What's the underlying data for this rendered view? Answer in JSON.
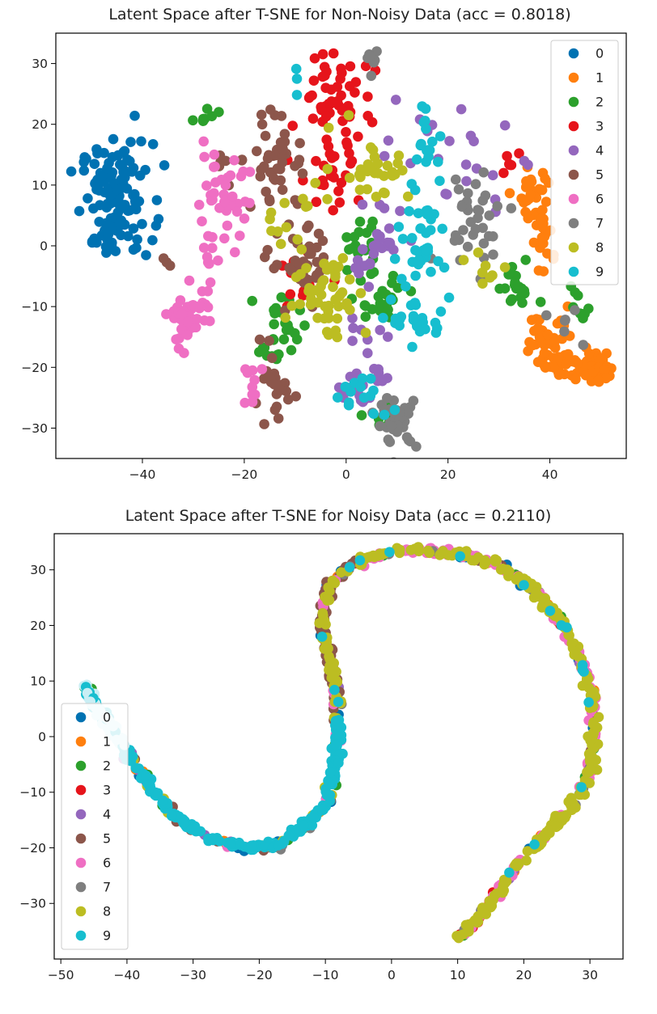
{
  "chart_data": [
    {
      "type": "scatter",
      "title": "Latent Space after T-SNE for Non-Noisy Data (acc = 0.8018)",
      "xlabel": "",
      "ylabel": "",
      "xlim": [
        -57,
        55
      ],
      "ylim": [
        -35,
        35
      ],
      "xticks": [
        -40,
        -20,
        0,
        20,
        40
      ],
      "yticks": [
        30,
        20,
        10,
        0,
        -10,
        -20,
        -30
      ],
      "xtick_labels": [
        "−40",
        "−20",
        "0",
        "20",
        "40"
      ],
      "ytick_labels": [
        "30",
        "20",
        "10",
        "0",
        "−10",
        "−20",
        "−30"
      ],
      "grid": false,
      "legend_position": "top-right",
      "series": [
        {
          "name": "0",
          "color": "#0072b2",
          "clusters": [
            {
              "cx": -45,
              "cy": 8,
              "sx": 3.5,
              "sy": 4.5,
              "n": 110
            },
            {
              "cx": -47,
              "cy": 1,
              "sx": 1.5,
              "sy": 1.5,
              "n": 10
            }
          ]
        },
        {
          "name": "1",
          "color": "#ff7f0e",
          "clusters": [
            {
              "cx": 37,
              "cy": 9,
              "sx": 1.5,
              "sy": 2.5,
              "n": 25
            },
            {
              "cx": 39,
              "cy": 2,
              "sx": 1.2,
              "sy": 3.0,
              "n": 20
            },
            {
              "cx": 40,
              "cy": -15,
              "sx": 2.5,
              "sy": 2.5,
              "n": 35
            },
            {
              "cx": 45,
              "cy": -19.5,
              "sx": 3.0,
              "sy": 1.5,
              "n": 45
            },
            {
              "cx": 50,
              "cy": -21,
              "sx": 1.5,
              "sy": 0.8,
              "n": 15
            }
          ]
        },
        {
          "name": "2",
          "color": "#2ca02c",
          "clusters": [
            {
              "cx": -28,
              "cy": 21,
              "sx": 1.5,
              "sy": 1.0,
              "n": 7
            },
            {
              "cx": -13,
              "cy": -14,
              "sx": 2.0,
              "sy": 3.0,
              "n": 30
            },
            {
              "cx": 3,
              "cy": 0,
              "sx": 2.0,
              "sy": 2.0,
              "n": 15
            },
            {
              "cx": 6,
              "cy": -8,
              "sx": 3.0,
              "sy": 2.5,
              "n": 25
            },
            {
              "cx": 33,
              "cy": -7,
              "sx": 2.0,
              "sy": 2.0,
              "n": 20
            },
            {
              "cx": 46,
              "cy": -10,
              "sx": 1.5,
              "sy": 2.0,
              "n": 8
            },
            {
              "cx": 8,
              "cy": -28,
              "sx": 2.0,
              "sy": 1.5,
              "n": 8
            }
          ]
        },
        {
          "name": "3",
          "color": "#e6141b",
          "clusters": [
            {
              "cx": -3,
              "cy": 25,
              "sx": 3.0,
              "sy": 4.0,
              "n": 45
            },
            {
              "cx": -3,
              "cy": 13,
              "sx": 4.0,
              "sy": 5.0,
              "n": 30
            },
            {
              "cx": -10,
              "cy": -7,
              "sx": 3.0,
              "sy": 4.0,
              "n": 12
            },
            {
              "cx": 32,
              "cy": 14,
              "sx": 1.5,
              "sy": 1.5,
              "n": 6
            }
          ]
        },
        {
          "name": "4",
          "color": "#9467bd",
          "clusters": [
            {
              "cx": 6,
              "cy": 0,
              "sx": 3.0,
              "sy": 3.0,
              "n": 25
            },
            {
              "cx": 20,
              "cy": 13,
              "sx": 6.0,
              "sy": 5.0,
              "n": 25
            },
            {
              "cx": 3,
              "cy": -23,
              "sx": 3.0,
              "sy": 2.0,
              "n": 20
            },
            {
              "cx": 5,
              "cy": -15,
              "sx": 2.5,
              "sy": 2.0,
              "n": 10
            }
          ]
        },
        {
          "name": "5",
          "color": "#8c564b",
          "clusters": [
            {
              "cx": -13,
              "cy": 14,
              "sx": 2.5,
              "sy": 4.0,
              "n": 40
            },
            {
              "cx": -9,
              "cy": -3,
              "sx": 3.0,
              "sy": 3.0,
              "n": 35
            },
            {
              "cx": -14,
              "cy": -24,
              "sx": 2.0,
              "sy": 3.0,
              "n": 25
            },
            {
              "cx": -23,
              "cy": 10,
              "sx": 2.0,
              "sy": 3.0,
              "n": 8
            },
            {
              "cx": -36,
              "cy": -3,
              "sx": 0.8,
              "sy": 0.5,
              "n": 3
            }
          ]
        },
        {
          "name": "6",
          "color": "#ef6fc3",
          "clusters": [
            {
              "cx": -25,
              "cy": 8,
              "sx": 3.0,
              "sy": 3.5,
              "n": 40
            },
            {
              "cx": -31,
              "cy": -12,
              "sx": 2.0,
              "sy": 3.0,
              "n": 40
            },
            {
              "cx": -27,
              "cy": -4,
              "sx": 1.0,
              "sy": 2.5,
              "n": 10
            },
            {
              "cx": -18,
              "cy": -23,
              "sx": 1.0,
              "sy": 2.0,
              "n": 10
            }
          ]
        },
        {
          "name": "7",
          "color": "#7f7f7f",
          "clusters": [
            {
              "cx": 10,
              "cy": -29,
              "sx": 2.0,
              "sy": 2.0,
              "n": 35
            },
            {
              "cx": 25,
              "cy": 5,
              "sx": 3.5,
              "sy": 4.0,
              "n": 35
            },
            {
              "cx": 5,
              "cy": 30,
              "sx": 0.8,
              "sy": 2.0,
              "n": 8
            },
            {
              "cx": 45,
              "cy": -14,
              "sx": 3.0,
              "sy": 3.0,
              "n": 6
            }
          ]
        },
        {
          "name": "8",
          "color": "#bcbd22",
          "clusters": [
            {
              "cx": -3,
              "cy": -8,
              "sx": 3.5,
              "sy": 3.5,
              "n": 45
            },
            {
              "cx": 5,
              "cy": 13,
              "sx": 4.0,
              "sy": 3.0,
              "n": 30
            },
            {
              "cx": -10,
              "cy": 5,
              "sx": 3.0,
              "sy": 3.0,
              "n": 15
            },
            {
              "cx": 28,
              "cy": -5,
              "sx": 3.0,
              "sy": 2.5,
              "n": 8
            }
          ]
        },
        {
          "name": "9",
          "color": "#17becf",
          "clusters": [
            {
              "cx": 15,
              "cy": 2,
              "sx": 2.5,
              "sy": 5.0,
              "n": 40
            },
            {
              "cx": 16,
              "cy": 17,
              "sx": 2.0,
              "sy": 2.5,
              "n": 15
            },
            {
              "cx": 14,
              "cy": -12,
              "sx": 2.5,
              "sy": 2.0,
              "n": 25
            },
            {
              "cx": 3,
              "cy": -25,
              "sx": 3.0,
              "sy": 2.0,
              "n": 15
            },
            {
              "cx": -10,
              "cy": 27,
              "sx": 0.7,
              "sy": 1.5,
              "n": 3
            }
          ]
        }
      ]
    },
    {
      "type": "scatter",
      "title": "Latent Space after T-SNE for Noisy Data (acc = 0.2110)",
      "xlabel": "",
      "ylabel": "",
      "xlim": [
        -51,
        35
      ],
      "ylim": [
        -40,
        36.5
      ],
      "xticks": [
        -50,
        -40,
        -30,
        -20,
        -10,
        0,
        10,
        20,
        30
      ],
      "yticks": [
        30,
        20,
        10,
        0,
        -10,
        -20,
        -30
      ],
      "xtick_labels": [
        "−50",
        "−40",
        "−30",
        "−20",
        "−10",
        "0",
        "10",
        "20",
        "30"
      ],
      "ytick_labels": [
        "30",
        "20",
        "10",
        "0",
        "−10",
        "−20",
        "−30"
      ],
      "grid": false,
      "legend_position": "lower-left",
      "curve": [
        [
          -46.5,
          9
        ],
        [
          -45,
          6
        ],
        [
          -42.5,
          2
        ],
        [
          -39.5,
          -4
        ],
        [
          -36,
          -10
        ],
        [
          -32,
          -15
        ],
        [
          -27,
          -18.5
        ],
        [
          -22,
          -20
        ],
        [
          -17,
          -19.5
        ],
        [
          -13,
          -16
        ],
        [
          -10,
          -12
        ],
        [
          -8.5,
          -5
        ],
        [
          -8,
          0
        ],
        [
          -8.3,
          7
        ],
        [
          -9.5,
          14
        ],
        [
          -10.5,
          21
        ],
        [
          -9.5,
          27
        ],
        [
          -6,
          31
        ],
        [
          -1,
          33
        ],
        [
          4,
          33.5
        ],
        [
          10,
          33
        ],
        [
          16,
          31
        ],
        [
          21,
          27
        ],
        [
          25.5,
          21
        ],
        [
          28.5,
          14
        ],
        [
          30.5,
          6
        ],
        [
          30.5,
          -2
        ],
        [
          29.5,
          -8
        ],
        [
          27,
          -13
        ],
        [
          23,
          -18
        ],
        [
          19,
          -23
        ],
        [
          15,
          -30
        ],
        [
          12,
          -34
        ],
        [
          10,
          -36.5
        ]
      ],
      "curve_points": 1000,
      "series_names": [
        "0",
        "1",
        "2",
        "3",
        "4",
        "5",
        "6",
        "7",
        "8",
        "9"
      ],
      "series_colors": [
        "#0072b2",
        "#ff7f0e",
        "#2ca02c",
        "#e6141b",
        "#9467bd",
        "#8c564b",
        "#ef6fc3",
        "#7f7f7f",
        "#bcbd22",
        "#17becf"
      ]
    }
  ]
}
